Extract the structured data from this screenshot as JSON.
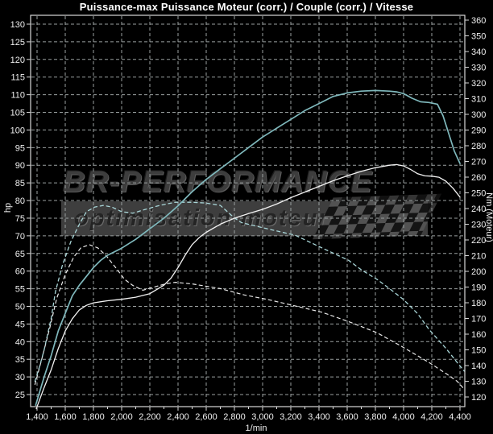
{
  "title": "Puissance-max Puissance Moteur (corr.) / Couple (corr.) / Vitesse",
  "watermark": {
    "line1": "BR-PERFORMANCE",
    "line2": "optimisation moteur"
  },
  "colors": {
    "background": "#000000",
    "grid": "#9aa0a0",
    "border": "#d9d9d9",
    "curve_power_tuned": "#7fb8bc",
    "curve_power_stock": "#f2f2f2",
    "curve_torque_tuned": "#a9d6d8",
    "curve_torque_stock": "#e8e8e8",
    "text": "#f0f0f0"
  },
  "axes": {
    "x": {
      "label": "1/min",
      "min": 1400,
      "max": 4400,
      "step": 200,
      "minor_step": 100,
      "tick_labels": [
        "1,400",
        "1,600",
        "1,800",
        "2,000",
        "2,200",
        "2,400",
        "2,600",
        "2,800",
        "3,000",
        "3,200",
        "3,400",
        "3,600",
        "3,800",
        "4,000",
        "4,200",
        "4,400"
      ]
    },
    "y_left": {
      "label": "hp",
      "min": 25,
      "max": 130,
      "step": 5
    },
    "y_right": {
      "label": "Nm (Moteur)",
      "min": 120,
      "max": 360,
      "step": 10
    }
  },
  "chart_data": {
    "type": "line",
    "xlabel": "1/min",
    "x_range": [
      1400,
      4400
    ],
    "y_left_range": [
      25,
      130
    ],
    "y_right_range": [
      120,
      360
    ],
    "grid": true,
    "legend": "none",
    "series": [
      {
        "name": "puissance-corr-optimisee",
        "axis": "left",
        "unit": "hp",
        "style": "solid",
        "color": "#7fb8bc",
        "width": 1.7,
        "points": [
          [
            1390,
            22
          ],
          [
            1450,
            30
          ],
          [
            1500,
            36
          ],
          [
            1550,
            43
          ],
          [
            1600,
            48
          ],
          [
            1650,
            53
          ],
          [
            1700,
            56
          ],
          [
            1750,
            58.5
          ],
          [
            1800,
            61
          ],
          [
            1850,
            63
          ],
          [
            1900,
            64.5
          ],
          [
            1950,
            65.5
          ],
          [
            2000,
            66.5
          ],
          [
            2100,
            69
          ],
          [
            2200,
            72
          ],
          [
            2300,
            75
          ],
          [
            2400,
            78.5
          ],
          [
            2500,
            82.5
          ],
          [
            2600,
            86
          ],
          [
            2700,
            89
          ],
          [
            2800,
            92
          ],
          [
            2900,
            95
          ],
          [
            3000,
            98
          ],
          [
            3100,
            100.5
          ],
          [
            3200,
            103
          ],
          [
            3300,
            105.5
          ],
          [
            3400,
            107.5
          ],
          [
            3500,
            109.5
          ],
          [
            3600,
            110.5
          ],
          [
            3700,
            111
          ],
          [
            3800,
            111.2
          ],
          [
            3900,
            111
          ],
          [
            3950,
            110.8
          ],
          [
            4000,
            110.3
          ],
          [
            4060,
            109
          ],
          [
            4120,
            108
          ],
          [
            4180,
            107.8
          ],
          [
            4240,
            107.3
          ],
          [
            4280,
            104
          ],
          [
            4320,
            99
          ],
          [
            4360,
            94
          ],
          [
            4400,
            90.5
          ]
        ]
      },
      {
        "name": "puissance-corr-origine",
        "axis": "left",
        "unit": "hp",
        "style": "solid",
        "color": "#f2f2f2",
        "width": 1.3,
        "points": [
          [
            1395,
            21
          ],
          [
            1450,
            27
          ],
          [
            1500,
            32
          ],
          [
            1550,
            38
          ],
          [
            1600,
            43
          ],
          [
            1650,
            46.5
          ],
          [
            1700,
            49
          ],
          [
            1750,
            50.3
          ],
          [
            1800,
            51
          ],
          [
            1900,
            51.6
          ],
          [
            2000,
            52
          ],
          [
            2100,
            52.6
          ],
          [
            2200,
            53.6
          ],
          [
            2300,
            56
          ],
          [
            2350,
            58
          ],
          [
            2400,
            61
          ],
          [
            2450,
            64.5
          ],
          [
            2500,
            67.5
          ],
          [
            2550,
            69.5
          ],
          [
            2600,
            71
          ],
          [
            2700,
            73.3
          ],
          [
            2800,
            75
          ],
          [
            2900,
            76.3
          ],
          [
            3000,
            77.5
          ],
          [
            3100,
            79
          ],
          [
            3200,
            80.8
          ],
          [
            3300,
            82.4
          ],
          [
            3400,
            84
          ],
          [
            3500,
            85.6
          ],
          [
            3600,
            87
          ],
          [
            3700,
            88.3
          ],
          [
            3800,
            89.3
          ],
          [
            3900,
            90
          ],
          [
            3950,
            90.2
          ],
          [
            4000,
            89.8
          ],
          [
            4050,
            88.8
          ],
          [
            4100,
            87.6
          ],
          [
            4150,
            87
          ],
          [
            4200,
            86.9
          ],
          [
            4250,
            86.6
          ],
          [
            4300,
            85.5
          ],
          [
            4350,
            83.5
          ],
          [
            4400,
            81
          ]
        ]
      },
      {
        "name": "couple-optimise",
        "axis": "right",
        "unit": "Nm",
        "style": "dashed",
        "color": "#a9d6d8",
        "width": 1.3,
        "points": [
          [
            1385,
            130
          ],
          [
            1420,
            140
          ],
          [
            1450,
            150
          ],
          [
            1500,
            170
          ],
          [
            1530,
            187
          ],
          [
            1580,
            204
          ],
          [
            1640,
            219
          ],
          [
            1700,
            230
          ],
          [
            1750,
            238
          ],
          [
            1810,
            241
          ],
          [
            1870,
            242
          ],
          [
            1930,
            241
          ],
          [
            2000,
            238
          ],
          [
            2080,
            237
          ],
          [
            2150,
            239
          ],
          [
            2270,
            242
          ],
          [
            2380,
            244
          ],
          [
            2500,
            244
          ],
          [
            2600,
            243.5
          ],
          [
            2700,
            242
          ],
          [
            2800,
            234
          ],
          [
            2850,
            231
          ],
          [
            3040,
            227
          ],
          [
            3230,
            223
          ],
          [
            3420,
            215
          ],
          [
            3610,
            207
          ],
          [
            3700,
            201
          ],
          [
            3810,
            195
          ],
          [
            3900,
            189
          ],
          [
            4000,
            182
          ],
          [
            4100,
            173
          ],
          [
            4180,
            163
          ],
          [
            4300,
            151
          ],
          [
            4380,
            142
          ],
          [
            4430,
            136.5
          ]
        ]
      },
      {
        "name": "couple-origine",
        "axis": "right",
        "unit": "Nm",
        "style": "dashed",
        "color": "#e8e8e8",
        "width": 1.2,
        "points": [
          [
            1385,
            128
          ],
          [
            1430,
            143
          ],
          [
            1490,
            164
          ],
          [
            1540,
            183
          ],
          [
            1600,
            198
          ],
          [
            1660,
            209
          ],
          [
            1710,
            215
          ],
          [
            1770,
            217
          ],
          [
            1830,
            215
          ],
          [
            1890,
            210
          ],
          [
            1970,
            201
          ],
          [
            2020,
            195
          ],
          [
            2080,
            191
          ],
          [
            2150,
            188
          ],
          [
            2230,
            190
          ],
          [
            2310,
            192
          ],
          [
            2380,
            193
          ],
          [
            2500,
            192
          ],
          [
            2700,
            189
          ],
          [
            2870,
            185
          ],
          [
            3040,
            182
          ],
          [
            3230,
            178
          ],
          [
            3420,
            174
          ],
          [
            3610,
            168
          ],
          [
            3810,
            161
          ],
          [
            3990,
            152
          ],
          [
            4180,
            142
          ],
          [
            4300,
            135
          ],
          [
            4380,
            130
          ],
          [
            4430,
            125
          ]
        ]
      }
    ]
  }
}
